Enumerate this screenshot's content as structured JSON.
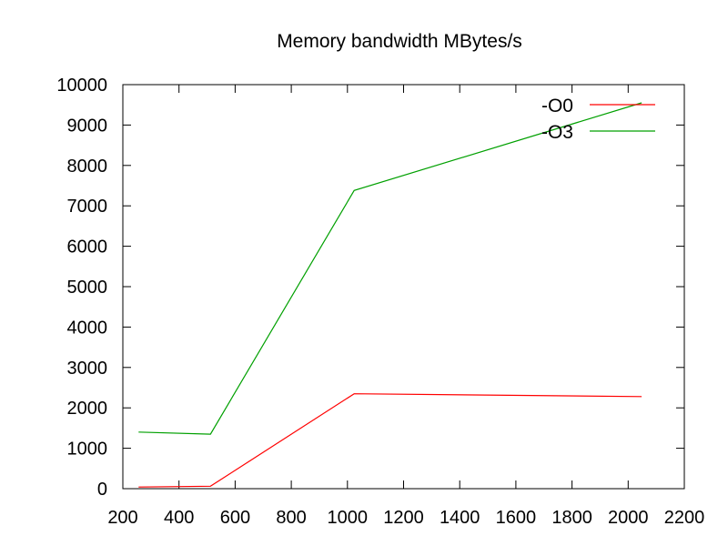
{
  "chart_data": {
    "type": "line",
    "title": "Memory bandwidth MBytes/s",
    "xlabel": "",
    "ylabel": "",
    "xlim": [
      200,
      2200
    ],
    "ylim": [
      0,
      10000
    ],
    "xticks": [
      200,
      400,
      600,
      800,
      1000,
      1200,
      1400,
      1600,
      1800,
      2000,
      2200
    ],
    "yticks": [
      0,
      1000,
      2000,
      3000,
      4000,
      5000,
      6000,
      7000,
      8000,
      9000,
      10000
    ],
    "grid": false,
    "legend_position": "top-right",
    "series": [
      {
        "name": "-O0",
        "color": "#ff0000",
        "x": [
          256,
          512,
          1024,
          2048
        ],
        "y": [
          40,
          60,
          2350,
          2280
        ]
      },
      {
        "name": "-O3",
        "color": "#00a000",
        "x": [
          256,
          512,
          1024,
          2048
        ],
        "y": [
          1400,
          1350,
          7380,
          9550
        ]
      }
    ]
  }
}
